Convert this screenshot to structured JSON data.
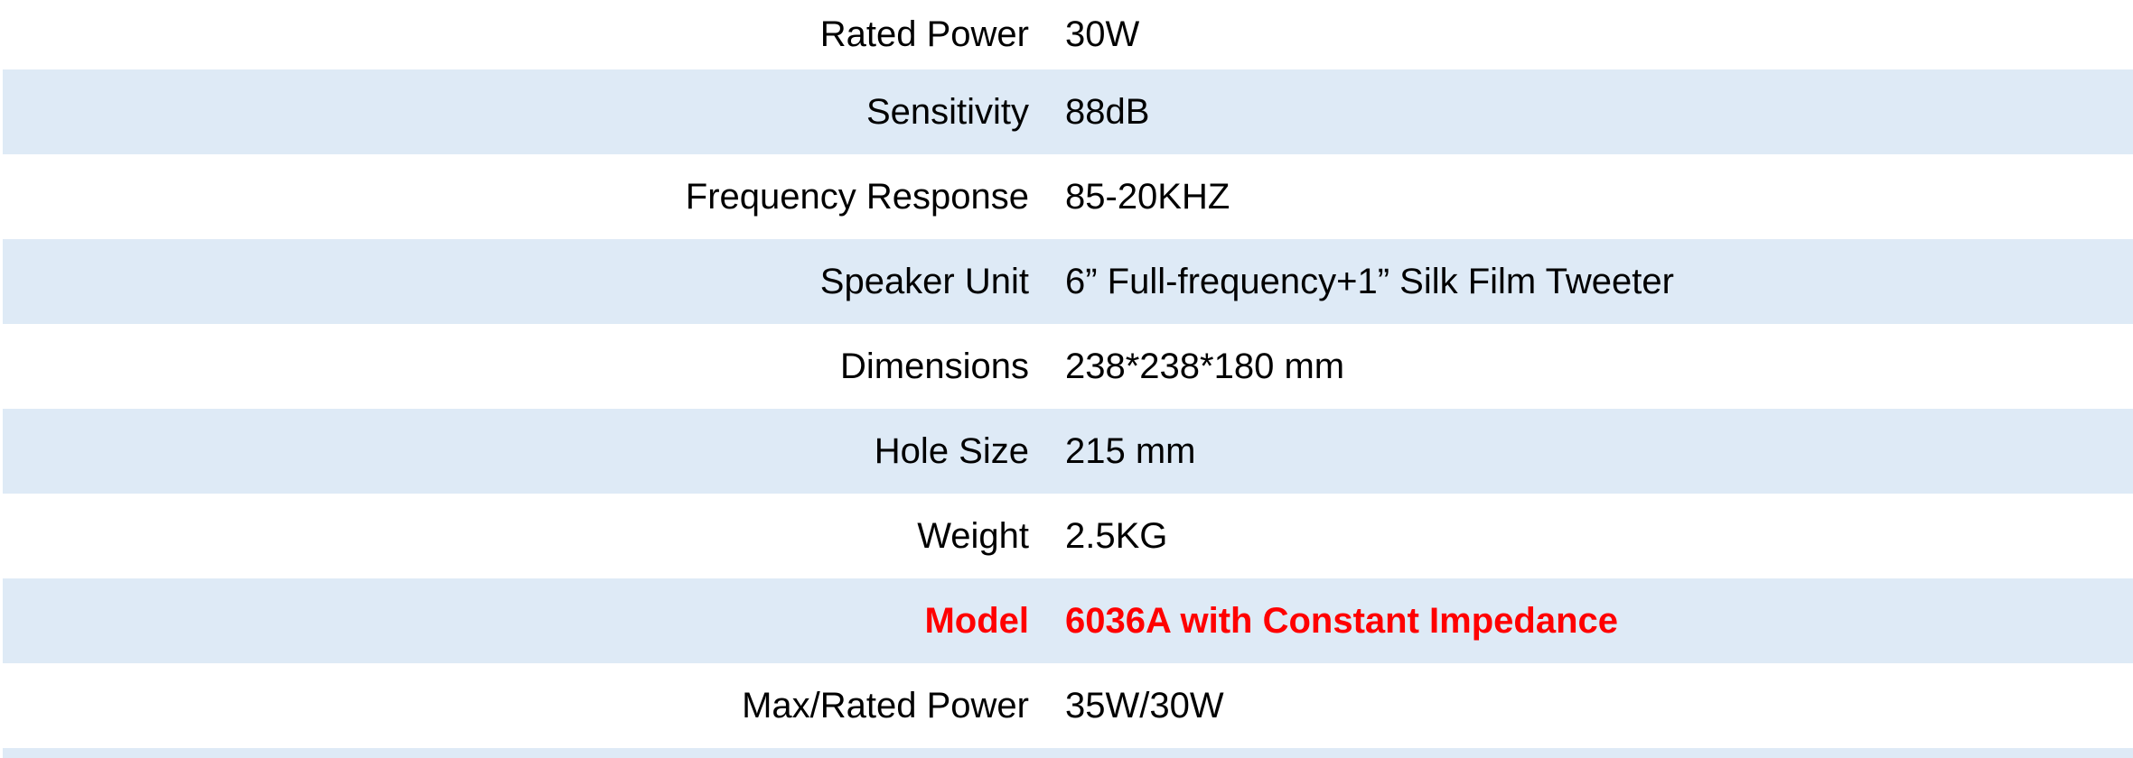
{
  "colors": {
    "stripe": "#DEEAF6",
    "background": "#FFFFFF",
    "text": "#000000",
    "emphasis_text": "#FF0000"
  },
  "spec_table": {
    "rows": [
      {
        "label": "Rated Power",
        "value": "30W",
        "emphasis": false
      },
      {
        "label": "Sensitivity",
        "value": "88dB",
        "emphasis": false
      },
      {
        "label": "Frequency Response",
        "value": "85-20KHZ",
        "emphasis": false
      },
      {
        "label": "Speaker Unit",
        "value": "6” Full-frequency+1” Silk Film Tweeter",
        "emphasis": false
      },
      {
        "label": "Dimensions",
        "value": "238*238*180 mm",
        "emphasis": false
      },
      {
        "label": "Hole Size",
        "value": "215 mm",
        "emphasis": false
      },
      {
        "label": "Weight",
        "value": "2.5KG",
        "emphasis": false
      },
      {
        "label": "Model",
        "value": "6036A with Constant Impedance",
        "emphasis": true
      },
      {
        "label": "Max/Rated Power",
        "value": "35W/30W",
        "emphasis": false
      },
      {
        "label": "",
        "value": "",
        "emphasis": false
      }
    ]
  }
}
